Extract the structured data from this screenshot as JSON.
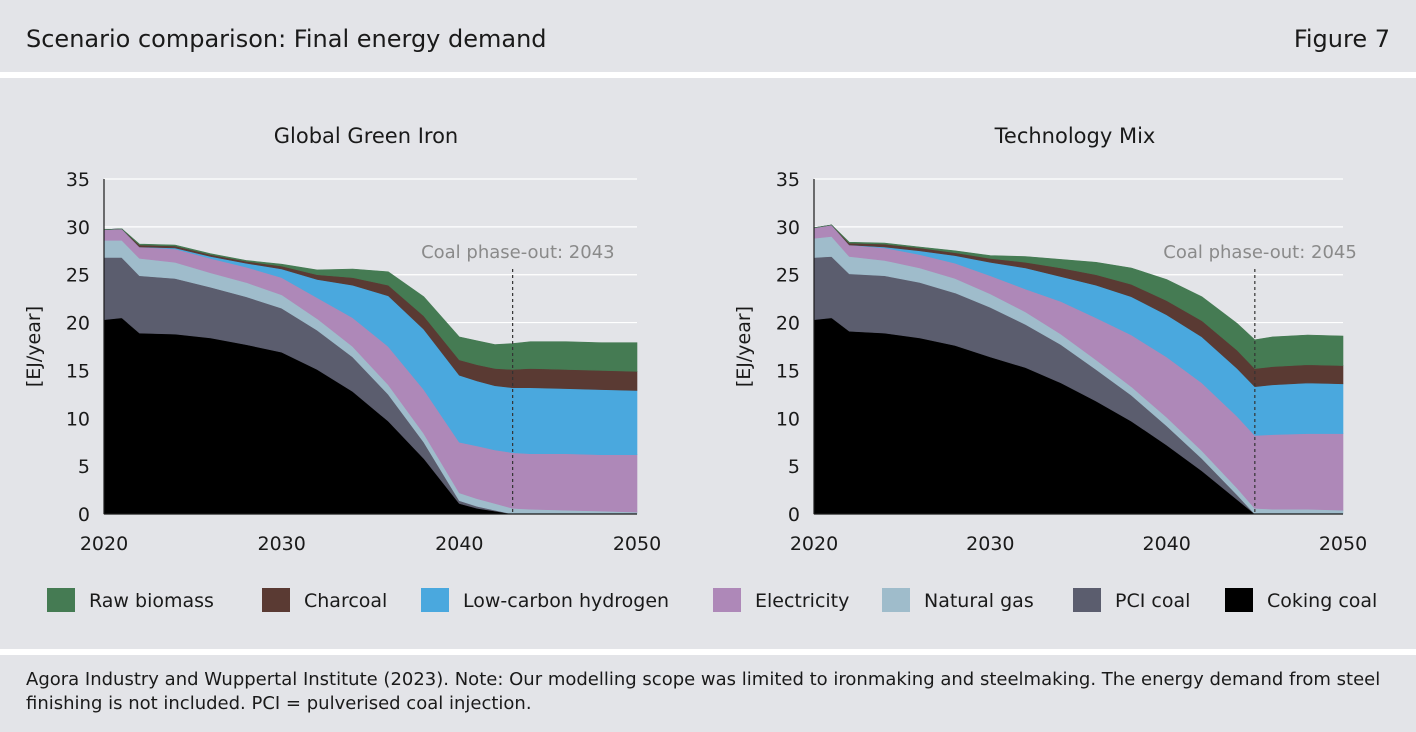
{
  "header": {
    "title": "Scenario comparison: Final energy demand",
    "figure_label": "Figure 7"
  },
  "colors": {
    "Raw biomass": "#457b53",
    "Charcoal": "#5a3a33",
    "Low-carbon hydrogen": "#4aa8de",
    "Electricity": "#ae88b8",
    "Natural gas": "#9fbccb",
    "PCI coal": "#5b5d6e",
    "Coking coal": "#000000"
  },
  "legend": {
    "items": [
      "Raw biomass",
      "Charcoal",
      "Low-carbon hydrogen",
      "Electricity",
      "Natural gas",
      "PCI coal",
      "Coking coal"
    ]
  },
  "chart_data": [
    {
      "type": "area",
      "stacked": true,
      "title": "Global Green Iron",
      "xlabel": "",
      "ylabel": "[EJ/year]",
      "xlim": [
        2020,
        2050
      ],
      "ylim": [
        0,
        35
      ],
      "xticks": [
        2020,
        2030,
        2040,
        2050
      ],
      "yticks": [
        0,
        5,
        10,
        15,
        20,
        25,
        30,
        35
      ],
      "grid": "horizontal",
      "annotation": {
        "text": "Coal phase-out: 2043",
        "x": 2043
      },
      "x": [
        2020,
        2021,
        2022,
        2024,
        2026,
        2028,
        2030,
        2032,
        2034,
        2036,
        2038,
        2040,
        2041,
        2042,
        2043,
        2044,
        2046,
        2048,
        2050
      ],
      "series": [
        {
          "name": "Coking coal",
          "values": [
            20.3,
            20.5,
            18.9,
            18.8,
            18.4,
            17.7,
            16.9,
            15.1,
            12.8,
            9.7,
            5.8,
            1.1,
            0.6,
            0.3,
            0,
            0,
            0,
            0,
            0
          ]
        },
        {
          "name": "PCI coal",
          "values": [
            6.5,
            6.3,
            6.0,
            5.8,
            5.3,
            5.0,
            4.6,
            4.1,
            3.6,
            2.8,
            1.7,
            0.3,
            0.2,
            0.1,
            0,
            0,
            0,
            0,
            0
          ]
        },
        {
          "name": "Natural gas",
          "values": [
            1.8,
            1.8,
            1.8,
            1.7,
            1.5,
            1.5,
            1.4,
            1.2,
            1.1,
            1.0,
            0.9,
            0.8,
            0.8,
            0.7,
            0.6,
            0.5,
            0.4,
            0.3,
            0.2
          ]
        },
        {
          "name": "Electricity",
          "values": [
            1.1,
            1.2,
            1.2,
            1.4,
            1.5,
            1.6,
            1.8,
            2.2,
            3.0,
            4.0,
            4.6,
            5.3,
            5.5,
            5.6,
            5.8,
            5.8,
            5.9,
            5.9,
            6.0
          ]
        },
        {
          "name": "Low-carbon hydrogen",
          "values": [
            0,
            0,
            0,
            0.1,
            0.2,
            0.4,
            0.9,
            1.9,
            3.4,
            5.3,
            6.3,
            7.0,
            6.8,
            6.7,
            6.8,
            6.9,
            6.8,
            6.8,
            6.7
          ]
        },
        {
          "name": "Charcoal",
          "values": [
            0,
            0,
            0.2,
            0.2,
            0.2,
            0.2,
            0.3,
            0.5,
            0.8,
            1.1,
            1.4,
            1.6,
            1.7,
            1.8,
            1.9,
            2.0,
            2.0,
            2.0,
            2.0
          ]
        },
        {
          "name": "Raw biomass",
          "values": [
            0,
            0,
            0.1,
            0.1,
            0.1,
            0.1,
            0.2,
            0.5,
            0.9,
            1.4,
            2.0,
            2.4,
            2.5,
            2.5,
            2.7,
            2.8,
            2.9,
            2.9,
            3.0
          ]
        }
      ]
    },
    {
      "type": "area",
      "stacked": true,
      "title": "Technology Mix",
      "xlabel": "",
      "ylabel": "[EJ/year]",
      "xlim": [
        2020,
        2050
      ],
      "ylim": [
        0,
        35
      ],
      "xticks": [
        2020,
        2030,
        2040,
        2050
      ],
      "yticks": [
        0,
        5,
        10,
        15,
        20,
        25,
        30,
        35
      ],
      "grid": "horizontal",
      "annotation": {
        "text": "Coal phase-out: 2045",
        "x": 2045
      },
      "x": [
        2020,
        2021,
        2022,
        2024,
        2026,
        2028,
        2030,
        2032,
        2034,
        2036,
        2038,
        2040,
        2042,
        2044,
        2045,
        2046,
        2048,
        2050
      ],
      "series": [
        {
          "name": "Coking coal",
          "values": [
            20.3,
            20.5,
            19.1,
            18.9,
            18.4,
            17.6,
            16.4,
            15.3,
            13.7,
            11.8,
            9.7,
            7.2,
            4.5,
            1.5,
            0,
            0,
            0,
            0
          ]
        },
        {
          "name": "PCI coal",
          "values": [
            6.5,
            6.4,
            6.0,
            6.0,
            5.8,
            5.5,
            5.2,
            4.5,
            4.0,
            3.3,
            2.7,
            2.0,
            1.3,
            0.5,
            0,
            0,
            0,
            0
          ]
        },
        {
          "name": "Natural gas",
          "values": [
            2.0,
            2.1,
            1.8,
            1.6,
            1.5,
            1.5,
            1.4,
            1.3,
            1.1,
            1.0,
            0.9,
            0.9,
            0.8,
            0.7,
            0.6,
            0.5,
            0.5,
            0.4
          ]
        },
        {
          "name": "Electricity",
          "values": [
            1.1,
            1.2,
            1.2,
            1.3,
            1.4,
            1.6,
            1.9,
            2.4,
            3.4,
            4.4,
            5.4,
            6.3,
            7.1,
            7.5,
            7.6,
            7.8,
            7.9,
            8.0
          ]
        },
        {
          "name": "Low-carbon hydrogen",
          "values": [
            0,
            0,
            0,
            0.1,
            0.4,
            0.8,
            1.4,
            2.2,
            2.6,
            3.4,
            4.0,
            4.4,
            4.8,
            5.0,
            5.1,
            5.2,
            5.3,
            5.2
          ]
        },
        {
          "name": "Charcoal",
          "values": [
            0,
            0,
            0.2,
            0.3,
            0.3,
            0.3,
            0.4,
            0.6,
            0.9,
            1.1,
            1.3,
            1.5,
            1.7,
            1.9,
            1.9,
            1.9,
            1.9,
            1.9
          ]
        },
        {
          "name": "Raw biomass",
          "values": [
            0,
            0,
            0.1,
            0.1,
            0.1,
            0.2,
            0.3,
            0.6,
            0.9,
            1.3,
            1.7,
            2.2,
            2.5,
            2.8,
            3.0,
            3.1,
            3.1,
            3.1
          ]
        }
      ]
    }
  ],
  "footer": {
    "source_text": "Agora Industry and Wuppertal Institute (2023). Note: Our modelling scope was limited to ironmaking and steelmaking. The energy demand from steel finishing is not included. PCI = pulverised coal injection."
  }
}
